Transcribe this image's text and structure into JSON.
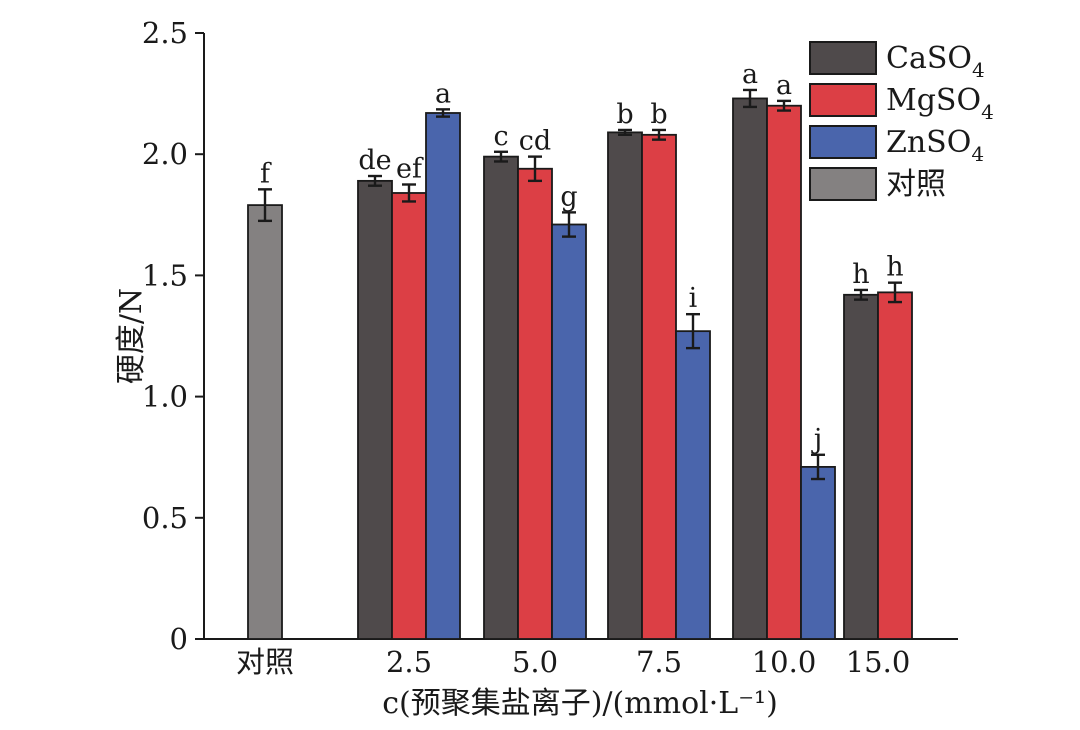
{
  "chart_data": {
    "type": "bar",
    "xlabel": "c(预聚集盐离子)/(mmol·L⁻¹)",
    "ylabel": "硬度/N",
    "ylim": [
      0,
      2.5
    ],
    "yticks": [
      "0",
      "0.5",
      "1.0",
      "1.5",
      "2.0",
      "2.5"
    ],
    "categories": [
      "对照",
      "2.5",
      "5.0",
      "7.5",
      "10.0",
      "15.0"
    ],
    "grid": false,
    "legend_position": "top-right",
    "series": [
      {
        "name": "CaSO4",
        "color": "#4f4a4b",
        "values": [
          null,
          1.89,
          1.99,
          2.09,
          2.23,
          1.42
        ],
        "errors": [
          null,
          0.02,
          0.02,
          0.01,
          0.035,
          0.02
        ],
        "labels": [
          null,
          "de",
          "c",
          "b",
          "a",
          "h"
        ]
      },
      {
        "name": "MgSO4",
        "color": "#dc3f45",
        "values": [
          null,
          1.84,
          1.94,
          2.08,
          2.2,
          1.43
        ],
        "errors": [
          null,
          0.035,
          0.05,
          0.02,
          0.02,
          0.04
        ],
        "labels": [
          null,
          "ef",
          "cd",
          "b",
          "a",
          "h"
        ]
      },
      {
        "name": "ZnSO4",
        "color": "#4a65ac",
        "values": [
          null,
          2.17,
          1.71,
          1.27,
          0.71,
          null
        ],
        "errors": [
          null,
          0.015,
          0.05,
          0.07,
          0.05,
          null
        ],
        "labels": [
          null,
          "a",
          "g",
          "i",
          "j",
          null
        ]
      },
      {
        "name": "对照",
        "color": "#848181",
        "values": [
          1.79,
          null,
          null,
          null,
          null,
          null
        ],
        "errors": [
          0.065,
          null,
          null,
          null,
          null,
          null
        ],
        "labels": [
          "f",
          null,
          null,
          null,
          null,
          null
        ]
      }
    ]
  }
}
